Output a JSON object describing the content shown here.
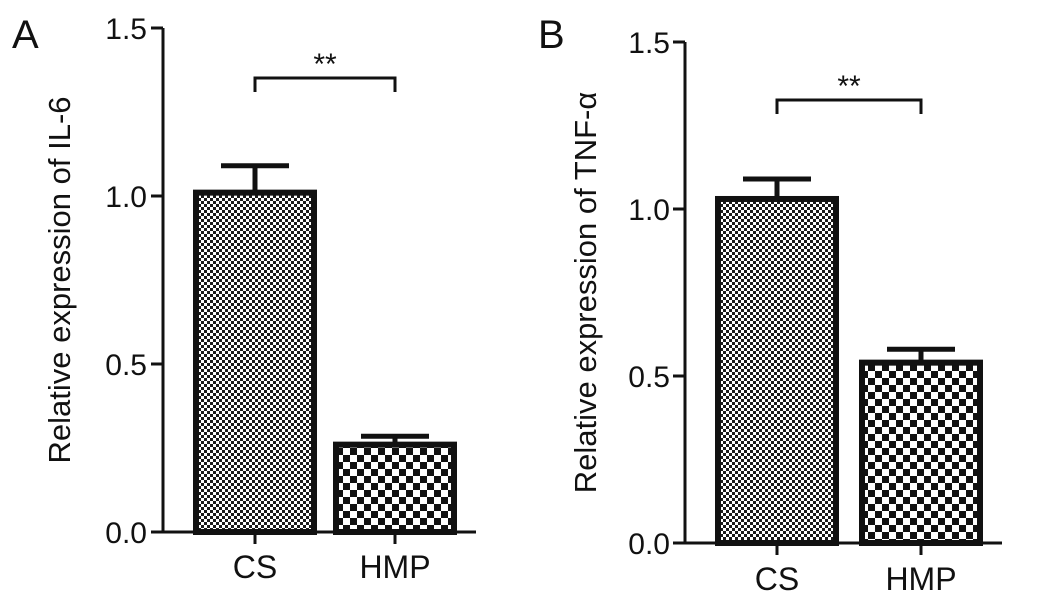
{
  "chart_data": [
    {
      "panel": "A",
      "type": "bar",
      "categories": [
        "CS",
        "HMP"
      ],
      "values": [
        1.01,
        0.26
      ],
      "errors": [
        0.08,
        0.025
      ],
      "patterns": [
        "fine-check",
        "coarse-check"
      ],
      "title": "",
      "xlabel": "",
      "ylabel": "Relative expression of IL-6",
      "ylim": [
        0,
        1.5
      ],
      "yticks": [
        "0.0",
        "0.5",
        "1.0",
        "1.5"
      ],
      "significance": {
        "from": "CS",
        "to": "HMP",
        "label": "**"
      },
      "grid": false
    },
    {
      "panel": "B",
      "type": "bar",
      "categories": [
        "CS",
        "HMP"
      ],
      "values": [
        1.03,
        0.54
      ],
      "errors": [
        0.06,
        0.04
      ],
      "patterns": [
        "fine-check",
        "coarse-check"
      ],
      "title": "",
      "xlabel": "",
      "ylabel": "Relative expression of TNF-α",
      "ylim": [
        0,
        1.5
      ],
      "yticks": [
        "0.0",
        "0.5",
        "1.0",
        "1.5"
      ],
      "significance": {
        "from": "CS",
        "to": "HMP",
        "label": "**"
      },
      "grid": false
    }
  ],
  "colors": {
    "ink": "#111111",
    "background": "#ffffff"
  }
}
